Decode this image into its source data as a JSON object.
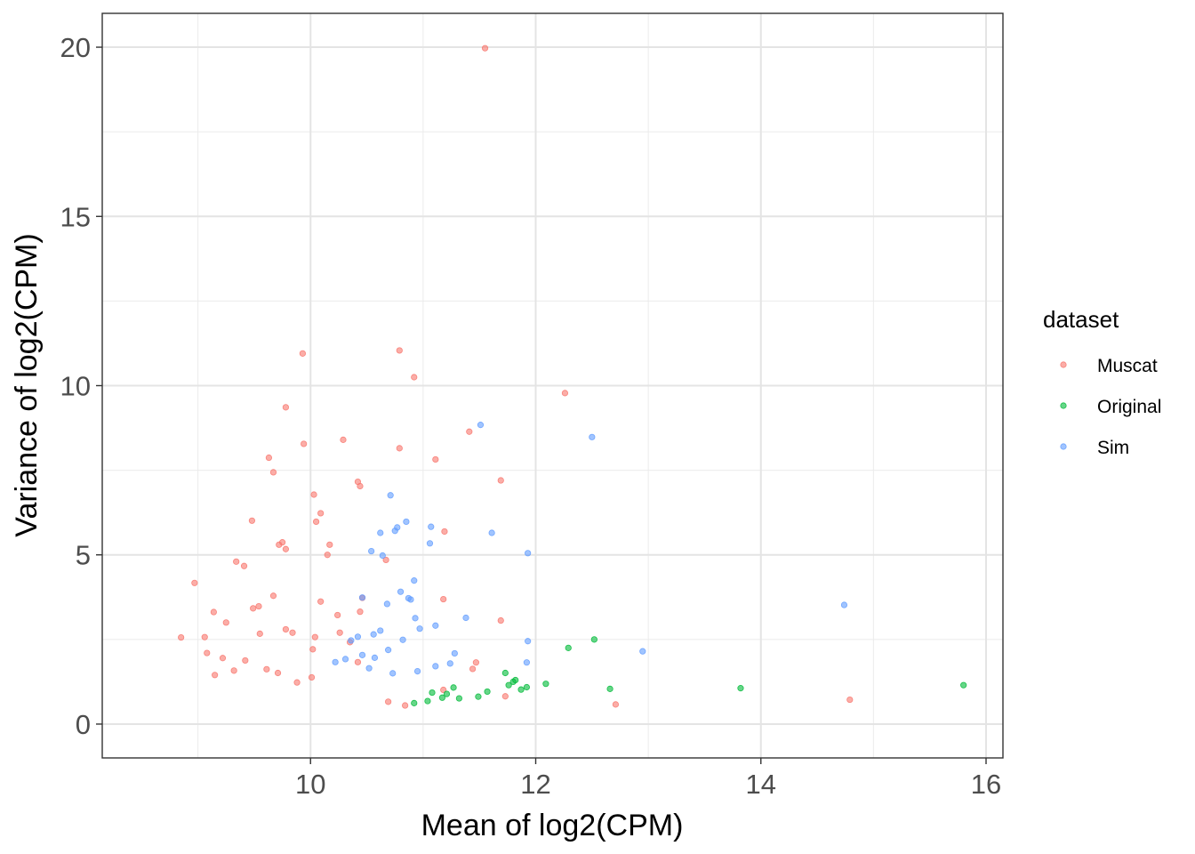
{
  "chart_data": {
    "type": "scatter",
    "xlabel": "Mean of log2(CPM)",
    "ylabel": "Variance of log2(CPM)",
    "xlim": [
      8.15,
      16.15
    ],
    "ylim": [
      -1.0,
      21.0
    ],
    "x_ticks": [
      10,
      12,
      14,
      16
    ],
    "y_ticks": [
      0,
      5,
      10,
      15,
      20
    ],
    "grid": true,
    "legend": {
      "title": "dataset",
      "position": "right"
    },
    "series": [
      {
        "name": "Muscat",
        "color": "#F8766D",
        "points": [
          [
            11.55,
            19.97
          ],
          [
            10.79,
            11.04
          ],
          [
            9.93,
            10.95
          ],
          [
            10.92,
            10.25
          ],
          [
            12.26,
            9.78
          ],
          [
            9.78,
            9.36
          ],
          [
            11.41,
            8.64
          ],
          [
            10.29,
            8.4
          ],
          [
            9.94,
            8.28
          ],
          [
            10.79,
            8.15
          ],
          [
            9.63,
            7.87
          ],
          [
            11.11,
            7.82
          ],
          [
            9.67,
            7.44
          ],
          [
            11.69,
            7.2
          ],
          [
            10.42,
            7.16
          ],
          [
            10.44,
            7.03
          ],
          [
            10.03,
            6.78
          ],
          [
            10.09,
            6.23
          ],
          [
            9.48,
            6.01
          ],
          [
            10.05,
            5.98
          ],
          [
            11.19,
            5.69
          ],
          [
            9.75,
            5.37
          ],
          [
            9.72,
            5.3
          ],
          [
            10.17,
            5.3
          ],
          [
            9.78,
            5.17
          ],
          [
            10.15,
            5.0
          ],
          [
            10.67,
            4.85
          ],
          [
            9.34,
            4.8
          ],
          [
            9.41,
            4.67
          ],
          [
            8.97,
            4.17
          ],
          [
            11.18,
            3.69
          ],
          [
            10.46,
            3.73
          ],
          [
            9.67,
            3.79
          ],
          [
            10.09,
            3.62
          ],
          [
            9.54,
            3.48
          ],
          [
            10.44,
            3.32
          ],
          [
            9.49,
            3.42
          ],
          [
            11.69,
            3.06
          ],
          [
            9.14,
            3.31
          ],
          [
            10.24,
            3.22
          ],
          [
            9.25,
            3.0
          ],
          [
            9.78,
            2.8
          ],
          [
            10.26,
            2.7
          ],
          [
            9.55,
            2.67
          ],
          [
            10.04,
            2.57
          ],
          [
            9.84,
            2.7
          ],
          [
            9.06,
            2.57
          ],
          [
            10.35,
            2.42
          ],
          [
            8.85,
            2.56
          ],
          [
            11.47,
            1.82
          ],
          [
            12.71,
            0.58
          ],
          [
            14.79,
            0.72
          ],
          [
            11.73,
            0.82
          ],
          [
            10.02,
            2.21
          ],
          [
            10.42,
            1.83
          ],
          [
            11.44,
            1.63
          ],
          [
            10.01,
            1.38
          ],
          [
            9.08,
            2.1
          ],
          [
            9.22,
            1.95
          ],
          [
            9.42,
            1.88
          ],
          [
            9.61,
            1.62
          ],
          [
            9.15,
            1.45
          ],
          [
            9.32,
            1.58
          ],
          [
            9.71,
            1.51
          ],
          [
            9.88,
            1.23
          ],
          [
            10.69,
            0.66
          ],
          [
            10.84,
            0.55
          ],
          [
            11.18,
            1.01
          ]
        ]
      },
      {
        "name": "Original",
        "color": "#00BA38",
        "points": [
          [
            15.8,
            1.15
          ],
          [
            13.82,
            1.06
          ],
          [
            12.52,
            2.5
          ],
          [
            12.29,
            2.25
          ],
          [
            12.09,
            1.19
          ],
          [
            12.66,
            1.04
          ],
          [
            11.82,
            1.3
          ],
          [
            11.76,
            1.15
          ],
          [
            11.92,
            1.09
          ],
          [
            11.87,
            1.02
          ],
          [
            11.73,
            1.51
          ],
          [
            11.8,
            1.25
          ],
          [
            11.49,
            0.81
          ],
          [
            11.57,
            0.96
          ],
          [
            11.27,
            1.08
          ],
          [
            11.08,
            0.93
          ],
          [
            11.17,
            0.78
          ],
          [
            11.04,
            0.68
          ],
          [
            11.21,
            0.89
          ],
          [
            10.92,
            0.62
          ],
          [
            11.32,
            0.76
          ]
        ]
      },
      {
        "name": "Sim",
        "color": "#619CFF",
        "points": [
          [
            11.51,
            8.84
          ],
          [
            12.5,
            8.48
          ],
          [
            10.71,
            6.76
          ],
          [
            10.85,
            5.98
          ],
          [
            11.07,
            5.83
          ],
          [
            10.77,
            5.81
          ],
          [
            10.62,
            5.65
          ],
          [
            11.61,
            5.65
          ],
          [
            11.06,
            5.34
          ],
          [
            11.93,
            5.05
          ],
          [
            10.64,
            4.98
          ],
          [
            10.75,
            5.71
          ],
          [
            10.54,
            5.11
          ],
          [
            10.92,
            4.24
          ],
          [
            10.8,
            3.91
          ],
          [
            10.87,
            3.72
          ],
          [
            14.74,
            3.52
          ],
          [
            10.46,
            3.74
          ],
          [
            10.89,
            3.68
          ],
          [
            10.68,
            3.55
          ],
          [
            11.38,
            3.14
          ],
          [
            10.93,
            3.13
          ],
          [
            10.97,
            2.82
          ],
          [
            11.11,
            2.91
          ],
          [
            12.95,
            2.15
          ],
          [
            11.93,
            2.45
          ],
          [
            10.62,
            2.76
          ],
          [
            10.56,
            2.65
          ],
          [
            10.42,
            2.58
          ],
          [
            10.36,
            2.47
          ],
          [
            10.82,
            2.49
          ],
          [
            11.28,
            2.09
          ],
          [
            11.92,
            1.82
          ],
          [
            10.69,
            2.19
          ],
          [
            10.46,
            2.04
          ],
          [
            10.57,
            1.96
          ],
          [
            11.11,
            1.71
          ],
          [
            11.24,
            1.79
          ],
          [
            10.31,
            1.92
          ],
          [
            10.22,
            1.83
          ],
          [
            10.95,
            1.56
          ],
          [
            10.73,
            1.5
          ],
          [
            10.52,
            1.65
          ]
        ]
      }
    ]
  }
}
